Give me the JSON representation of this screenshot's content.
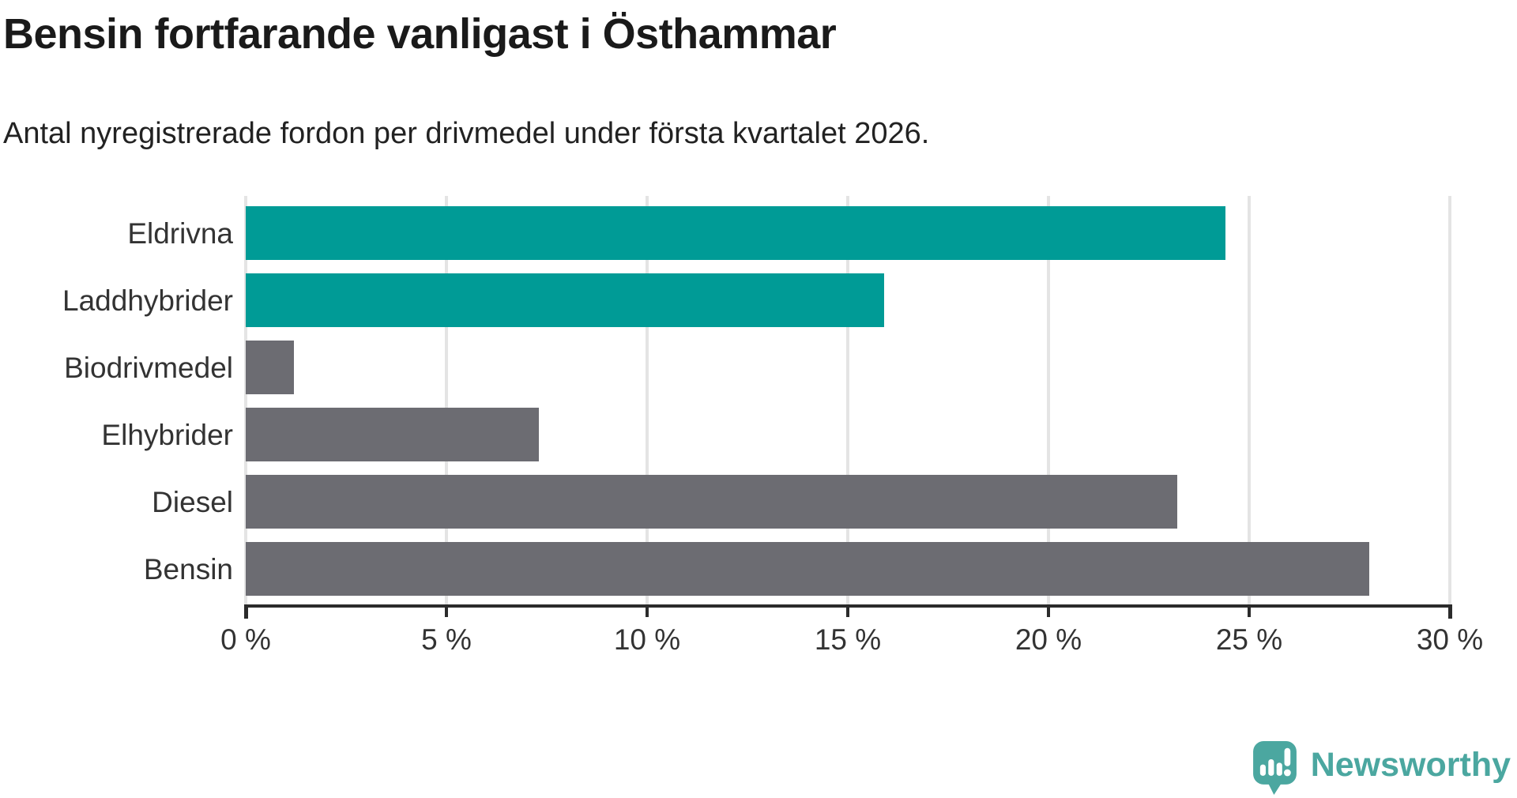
{
  "title": "Bensin fortfarande vanligast i Östhammar",
  "subtitle": "Antal nyregistrerade fordon per drivmedel under första kvartalet 2026.",
  "chart_data": {
    "type": "bar",
    "orientation": "horizontal",
    "title": "Bensin fortfarande vanligast i Östhammar",
    "subtitle": "Antal nyregistrerade fordon per drivmedel under första kvartalet 2026.",
    "categories": [
      "Eldrivna",
      "Laddhybrider",
      "Biodrivmedel",
      "Elhybrider",
      "Diesel",
      "Bensin"
    ],
    "values": [
      24.4,
      15.9,
      1.2,
      7.3,
      23.2,
      28.0
    ],
    "unit": "%",
    "xlim": [
      0,
      30
    ],
    "x_ticks": [
      0,
      5,
      10,
      15,
      20,
      25,
      30
    ],
    "x_tick_labels": [
      "0 %",
      "5 %",
      "10 %",
      "15 %",
      "20 %",
      "25 %",
      "30 %"
    ],
    "bar_colors": [
      "#009B96",
      "#009B96",
      "#6C6C72",
      "#6C6C72",
      "#6C6C72",
      "#6C6C72"
    ],
    "highlight_color": "#009B96",
    "default_color": "#6C6C72",
    "gridline_color": "#e4e4e4",
    "axis_color": "#2b2b2b",
    "grid": true,
    "legend": "none"
  },
  "footer": {
    "brand": "Newsworthy",
    "brand_color": "#4BA7A0",
    "logo_icon": "newsworthy-speech-bubble-chart-icon"
  }
}
